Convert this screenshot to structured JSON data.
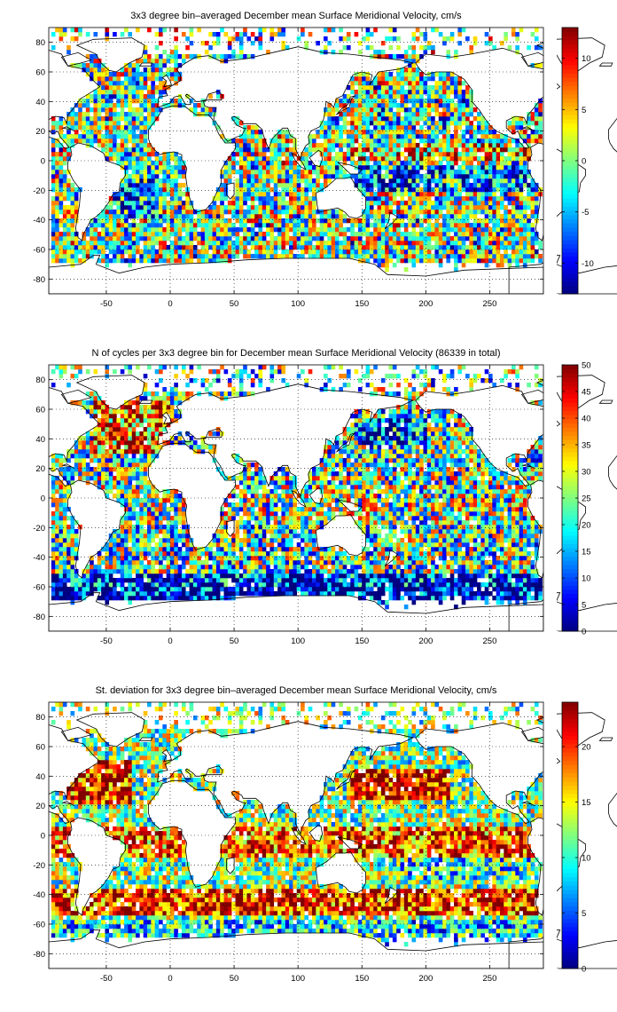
{
  "chart_data": [
    {
      "type": "heatmap",
      "title": "3x3 degree bin–averaged December mean Surface Meridional Velocity, cm/s",
      "xlim": [
        -95,
        292
      ],
      "ylim": [
        -90,
        90
      ],
      "xticks": [
        -50,
        0,
        50,
        100,
        150,
        200,
        250
      ],
      "yticks": [
        -80,
        -60,
        -40,
        -20,
        0,
        20,
        40,
        60,
        80
      ],
      "grid": true,
      "colormap": "jet",
      "clim": [
        -13,
        13
      ],
      "colorbar_ticks": [
        -10,
        -5,
        0,
        5,
        10
      ],
      "field": "velocity"
    },
    {
      "type": "heatmap",
      "title": "N of cycles per 3x3 degree bin for December mean Surface Meridional Velocity (86339 in total)",
      "xlim": [
        -95,
        292
      ],
      "ylim": [
        -90,
        90
      ],
      "xticks": [
        -50,
        0,
        50,
        100,
        150,
        200,
        250
      ],
      "yticks": [
        -80,
        -60,
        -40,
        -20,
        0,
        20,
        40,
        60,
        80
      ],
      "grid": true,
      "colormap": "jet",
      "clim": [
        0,
        50
      ],
      "colorbar_ticks": [
        0,
        5,
        10,
        15,
        20,
        25,
        30,
        35,
        40,
        45,
        50
      ],
      "field": "count"
    },
    {
      "type": "heatmap",
      "title": "St. deviation for 3x3 degree bin–averaged December mean Surface Meridional Velocity, cm/s",
      "xlim": [
        -95,
        292
      ],
      "ylim": [
        -90,
        90
      ],
      "xticks": [
        -50,
        0,
        50,
        100,
        150,
        200,
        250
      ],
      "yticks": [
        -80,
        -60,
        -40,
        -20,
        0,
        20,
        40,
        60,
        80
      ],
      "grid": true,
      "colormap": "jet",
      "clim": [
        0,
        24
      ],
      "colorbar_ticks": [
        0,
        5,
        10,
        15,
        20
      ],
      "field": "stddev"
    }
  ],
  "colors": {
    "land": "#ffffff",
    "coastline": "#000000",
    "grid": "#000000"
  }
}
